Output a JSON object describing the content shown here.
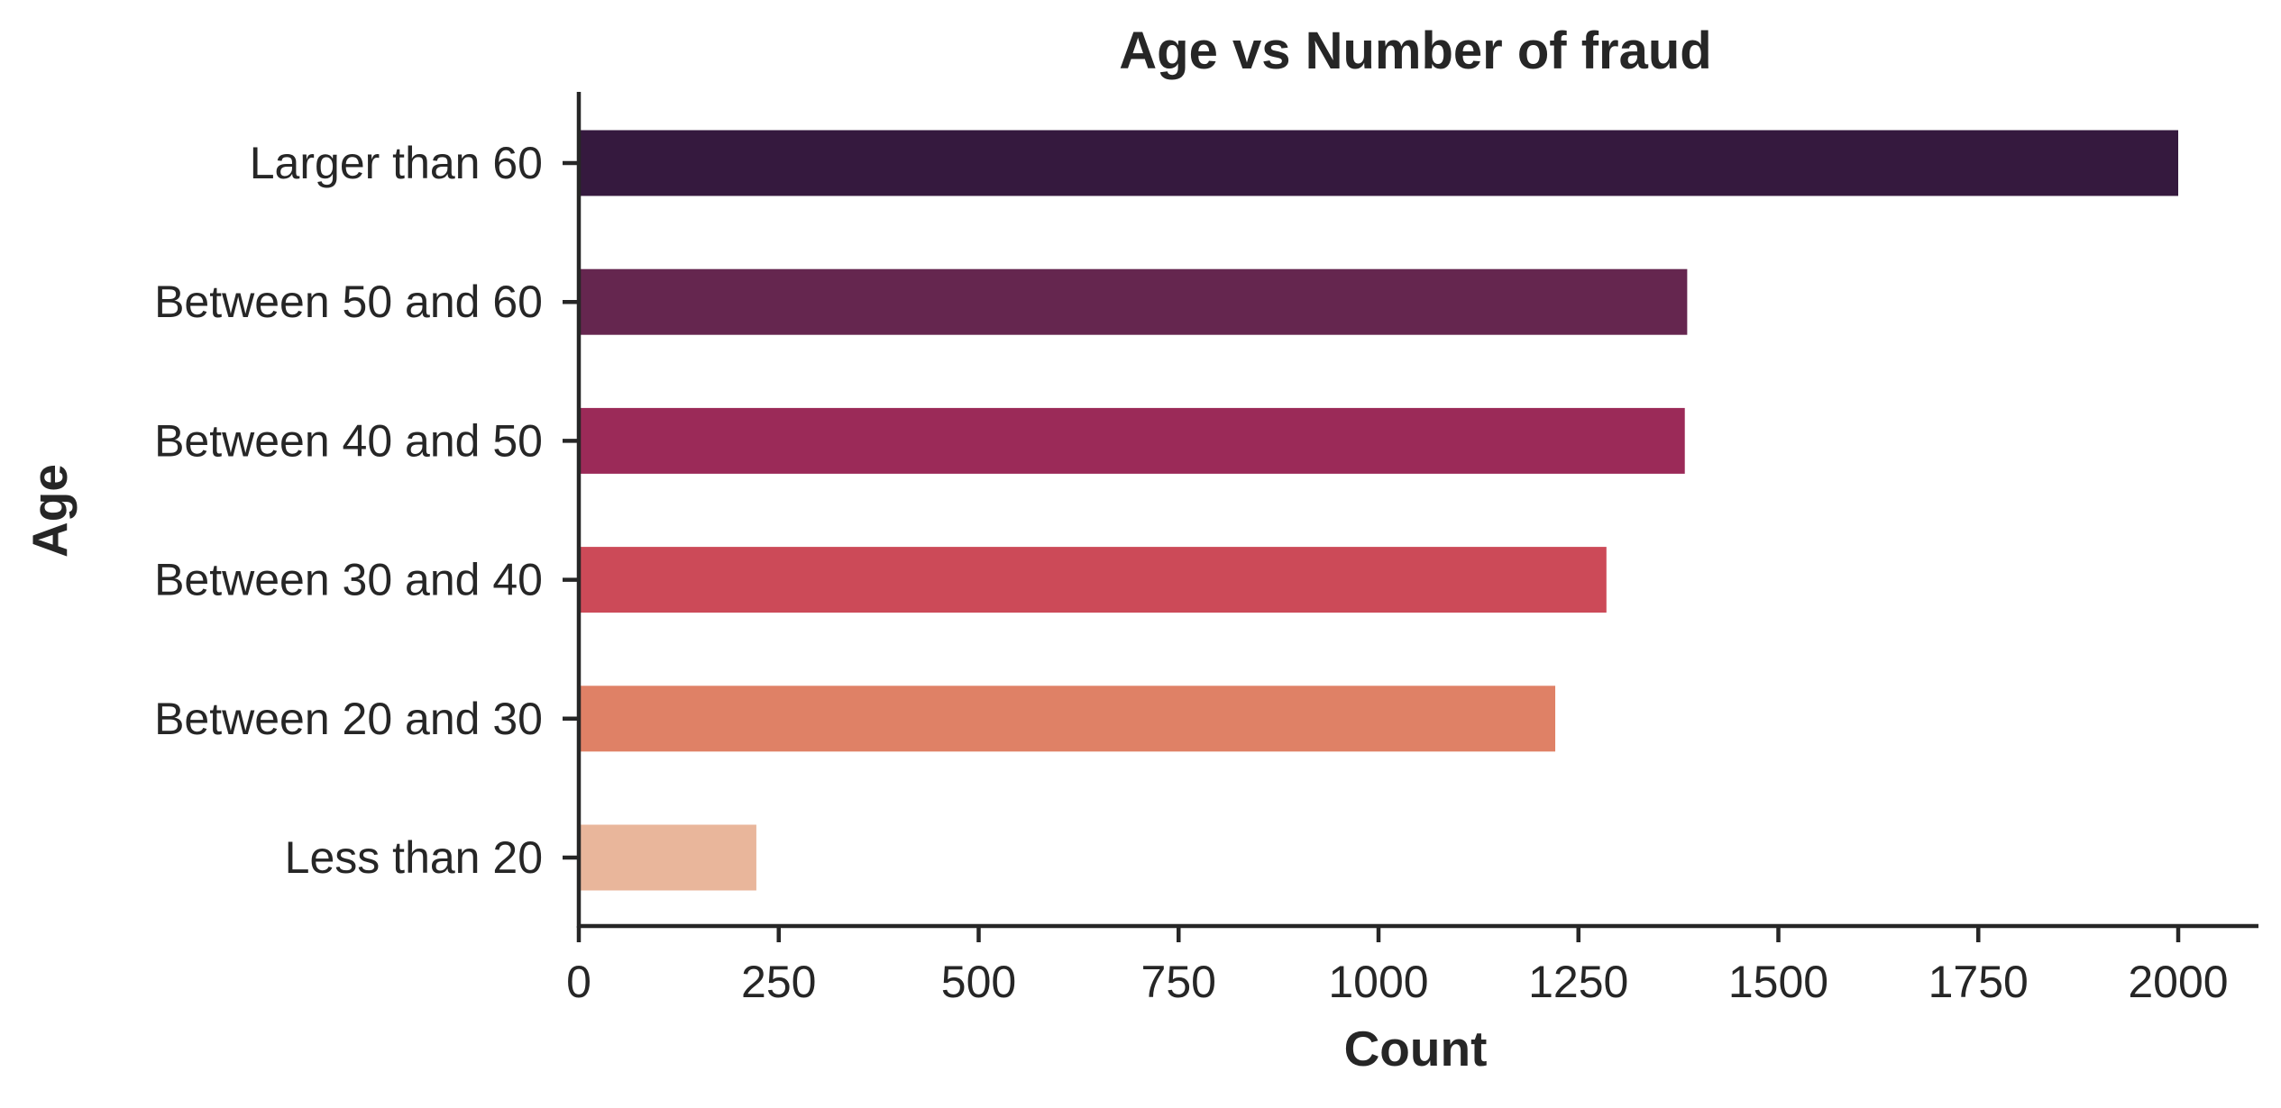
{
  "chart_data": {
    "type": "bar",
    "orientation": "horizontal",
    "title": "Age vs Number of fraud",
    "xlabel": "Count",
    "ylabel": "Age",
    "categories": [
      "Larger than 60",
      "Between 50 and 60",
      "Between 40 and 50",
      "Between 30 and 40",
      "Between 20 and 30",
      "Less than 20"
    ],
    "values": [
      2000,
      1386,
      1383,
      1285,
      1221,
      222
    ],
    "colors": [
      "#35193e",
      "#65264f",
      "#9b2a58",
      "#cc4a58",
      "#df8166",
      "#e9b69b"
    ],
    "xlim": [
      0,
      2100
    ],
    "xticks": [
      0,
      250,
      500,
      750,
      1000,
      1250,
      1500,
      1750,
      2000
    ],
    "xtick_labels": [
      "0",
      "250",
      "500",
      "750",
      "1000",
      "1250",
      "1500",
      "1750",
      "2000"
    ],
    "grid": false
  }
}
